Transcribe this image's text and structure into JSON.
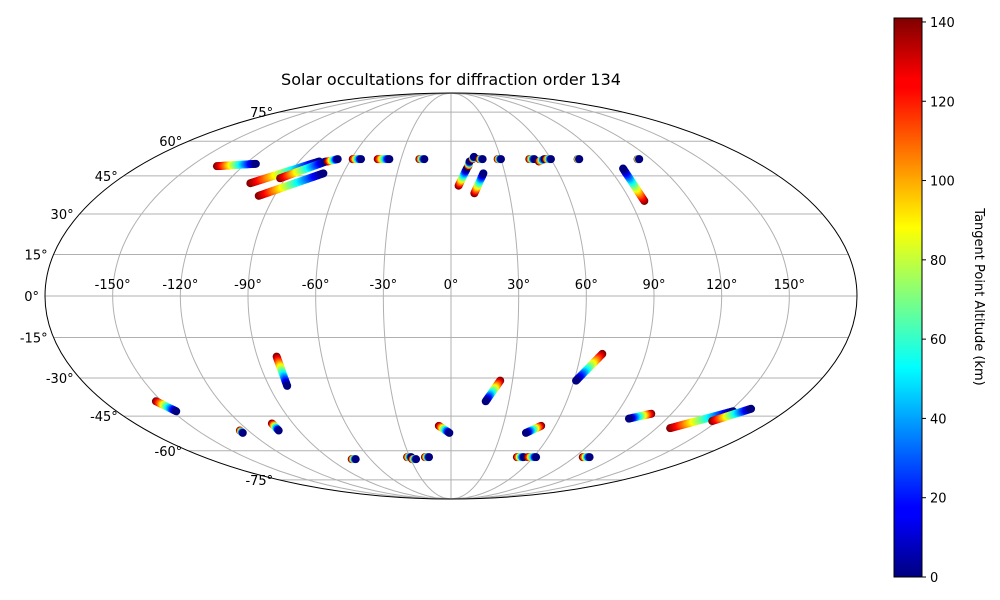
{
  "chart_data": {
    "type": "scatter",
    "projection": "mollweide",
    "title": "Solar occultations for diffraction order 134",
    "colorbar": {
      "label": "Tangent Point Altitude (km)",
      "range": [
        0,
        141
      ],
      "ticks": [
        0,
        20,
        40,
        60,
        80,
        100,
        120,
        140
      ],
      "colormap": "jet"
    },
    "lon_ticks": [
      -150,
      -120,
      -90,
      -60,
      -30,
      0,
      30,
      60,
      90,
      120,
      150
    ],
    "lon_tick_labels": [
      "-150°",
      "-120°",
      "-90°",
      "-60°",
      "-30°",
      "0°",
      "30°",
      "60°",
      "90°",
      "120°",
      "150°"
    ],
    "lat_ticks": [
      75,
      60,
      45,
      30,
      15,
      0,
      -15,
      -30,
      -45,
      -60,
      -75
    ],
    "lat_tick_labels": [
      "75°",
      "60°",
      "45°",
      "30°",
      "15°",
      "0°",
      "-15°",
      "-30°",
      "-45°",
      "-60°",
      "-75°"
    ],
    "tracks": [
      {
        "start": [
          -135,
          49
        ],
        "end": [
          -114,
          50
        ]
      },
      {
        "start": [
          -107,
          42
        ],
        "end": [
          -78,
          51
        ]
      },
      {
        "start": [
          -98,
          37
        ],
        "end": [
          -71,
          46
        ]
      },
      {
        "start": [
          -93,
          44
        ],
        "end": [
          -74,
          51
        ]
      },
      {
        "start": [
          -73,
          51
        ],
        "end": [
          -68,
          52
        ]
      },
      {
        "start": [
          -59,
          52
        ],
        "end": [
          -54,
          52
        ]
      },
      {
        "start": [
          -44,
          52
        ],
        "end": [
          -37,
          52
        ]
      },
      {
        "start": [
          -19,
          52
        ],
        "end": [
          -16,
          52
        ]
      },
      {
        "start": [
          4,
          41
        ],
        "end": [
          9,
          48
        ]
      },
      {
        "start": [
          12,
          38
        ],
        "end": [
          18,
          46
        ]
      },
      {
        "start": [
          10,
          49
        ],
        "end": [
          11,
          51
        ]
      },
      {
        "start": [
          13,
          52
        ],
        "end": [
          14,
          53
        ]
      },
      {
        "start": [
          17,
          52
        ],
        "end": [
          19,
          52
        ]
      },
      {
        "start": [
          28,
          52
        ],
        "end": [
          30,
          52
        ]
      },
      {
        "start": [
          47,
          52
        ],
        "end": [
          50,
          52
        ]
      },
      {
        "start": [
          52,
          51
        ],
        "end": [
          56,
          52
        ]
      },
      {
        "start": [
          57,
          52
        ],
        "end": [
          60,
          52
        ]
      },
      {
        "start": [
          76,
          52
        ],
        "end": [
          77,
          52
        ]
      },
      {
        "start": [
          112,
          52
        ],
        "end": [
          113,
          52
        ]
      },
      {
        "start": [
          97,
          35
        ],
        "end": [
          98,
          48
        ]
      },
      {
        "start": [
          -81,
          -22
        ],
        "end": [
          -81,
          -33
        ]
      },
      {
        "start": [
          -153,
          -39
        ],
        "end": [
          -148,
          -43
        ]
      },
      {
        "start": [
          -125,
          -51
        ],
        "end": [
          -125,
          -52
        ]
      },
      {
        "start": [
          -102,
          -48
        ],
        "end": [
          -102,
          -51
        ]
      },
      {
        "start": [
          -74,
          -64
        ],
        "end": [
          -71,
          -64
        ]
      },
      {
        "start": [
          -32,
          -63
        ],
        "end": [
          -29,
          -63
        ]
      },
      {
        "start": [
          -29,
          -64
        ],
        "end": [
          -26,
          -64
        ]
      },
      {
        "start": [
          -19,
          -63
        ],
        "end": [
          -16,
          -63
        ]
      },
      {
        "start": [
          -7,
          -49
        ],
        "end": [
          -1,
          -52
        ]
      },
      {
        "start": [
          24,
          -31
        ],
        "end": [
          18,
          -39
        ]
      },
      {
        "start": [
          52,
          -49
        ],
        "end": [
          45,
          -52
        ]
      },
      {
        "start": [
          48,
          -63
        ],
        "end": [
          53,
          -63
        ]
      },
      {
        "start": [
          56,
          -63
        ],
        "end": [
          62,
          -63
        ]
      },
      {
        "start": [
          70,
          -21
        ],
        "end": [
          61,
          -31
        ]
      },
      {
        "start": [
          109,
          -44
        ],
        "end": [
          99,
          -46
        ]
      },
      {
        "start": [
          96,
          -63
        ],
        "end": [
          101,
          -63
        ]
      },
      {
        "start": [
          128,
          -50
        ],
        "end": [
          152,
          -43
        ]
      },
      {
        "start": [
          147,
          -47
        ],
        "end": [
          160,
          -42
        ]
      }
    ]
  }
}
